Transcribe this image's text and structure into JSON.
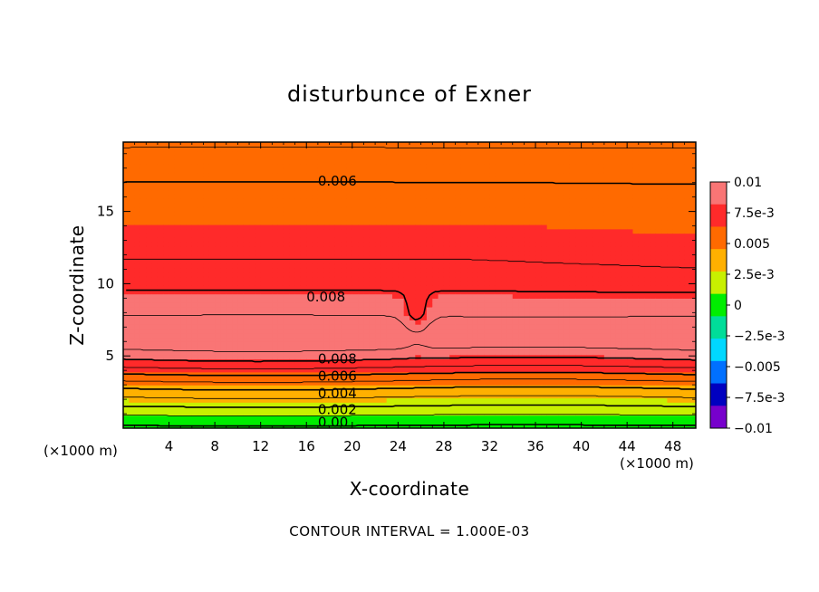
{
  "chart_data": {
    "type": "heatmap",
    "title": "disturbunce of Exner",
    "xlabel": "X-coordinate",
    "ylabel": "Z-coordinate",
    "x_unit": "(×1000 m)",
    "xlim": [
      0,
      50
    ],
    "ylim": [
      0,
      19.8
    ],
    "x_ticks": [
      4,
      8,
      12,
      16,
      20,
      24,
      28,
      32,
      36,
      40,
      44,
      48
    ],
    "y_ticks": [
      5,
      10,
      15
    ],
    "colorbar": {
      "range": [
        -0.01,
        0.01
      ],
      "tick_labels": [
        "0.01",
        "7.5e-3",
        "0.005",
        "2.5e-3",
        "0",
        "−2.5e-3",
        "−0.005",
        "−7.5e-3",
        "−0.01"
      ],
      "tick_values": [
        0.01,
        0.0075,
        0.005,
        0.0025,
        0,
        -0.0025,
        -0.005,
        -0.0075,
        -0.01
      ],
      "colors": [
        "#f97575",
        "#ff2a2a",
        "#ff6a00",
        "#ffb000",
        "#c8f000",
        "#00ee00",
        "#00dd99",
        "#00d8ff",
        "#0070ff",
        "#0000c0",
        "#7700cc"
      ]
    },
    "contour_interval": 0.001,
    "contour_labels": [
      {
        "text": "0.006",
        "value": 0.006,
        "x": 17,
        "z": 17.1
      },
      {
        "text": "0.008",
        "value": 0.008,
        "x": 16,
        "z": 9.1
      },
      {
        "text": "0.008",
        "value": 0.008,
        "x": 17,
        "z": 4.8
      },
      {
        "text": "0.006",
        "value": 0.006,
        "x": 17,
        "z": 3.6
      },
      {
        "text": "0.004",
        "value": 0.004,
        "x": 17,
        "z": 2.4
      },
      {
        "text": "0.002",
        "value": 0.002,
        "x": 17,
        "z": 1.3
      },
      {
        "text": "0.00",
        "value": 0.0,
        "x": 17,
        "z": 0.4
      }
    ],
    "fields": {
      "profile": {
        "z": [
          0,
          0.5,
          1.0,
          1.5,
          2.0,
          2.5,
          3.0,
          3.5,
          4.0,
          4.5,
          5.0,
          5.5,
          6.0,
          6.5,
          7.0,
          8.0,
          9.0,
          10.0,
          11.0,
          12.0,
          13.0,
          14.0,
          15.0,
          16.0,
          17.0,
          18.0,
          19.0,
          19.8
        ],
        "value": [
          -0.0002,
          0.0004,
          0.0012,
          0.002,
          0.0028,
          0.0036,
          0.0045,
          0.0055,
          0.0066,
          0.0076,
          0.0084,
          0.0091,
          0.0096,
          0.0099,
          0.0096,
          0.0088,
          0.0083,
          0.0077,
          0.0072,
          0.0069,
          0.0066,
          0.0064,
          0.0062,
          0.0061,
          0.006,
          0.0056,
          0.0052,
          0.0048
        ]
      }
    }
  },
  "footer": "CONTOUR INTERVAL = 1.000E-03"
}
